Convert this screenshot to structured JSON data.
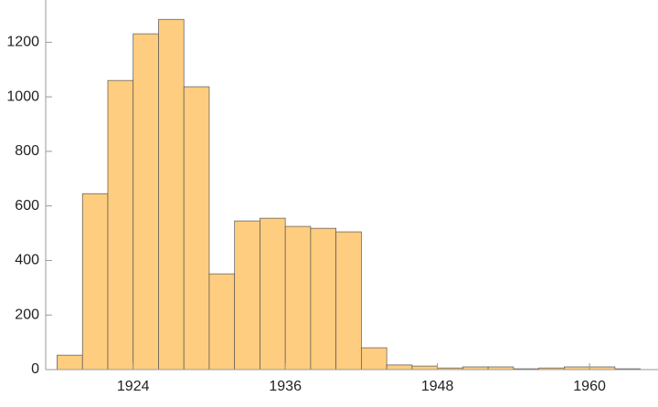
{
  "chart_data": {
    "type": "histogram",
    "bins": [
      1918,
      1920,
      1922,
      1924,
      1926,
      1928,
      1930,
      1932,
      1934,
      1936,
      1938,
      1940,
      1942,
      1944,
      1946,
      1948,
      1950,
      1952,
      1954,
      1956,
      1958,
      1960,
      1962,
      1964
    ],
    "values": [
      53,
      645,
      1060,
      1231,
      1284,
      1037,
      351,
      545,
      555,
      525,
      518,
      505,
      80,
      17,
      13,
      6,
      10,
      10,
      3,
      6,
      10,
      10,
      3
    ],
    "color": "#fecd7f",
    "xlim": [
      1917.1,
      1965.4
    ],
    "xticks": [
      1924,
      1936,
      1948,
      1960
    ],
    "ylim": [
      0,
      1355
    ],
    "yticks": [
      0,
      200,
      400,
      600,
      800,
      1000,
      1200
    ]
  }
}
